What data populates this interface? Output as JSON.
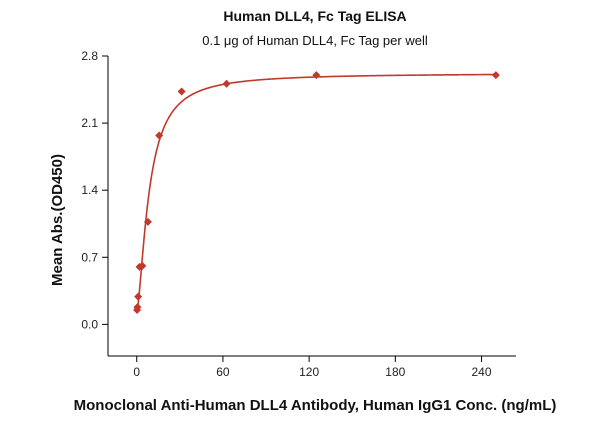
{
  "chart_data": {
    "type": "scatter",
    "title": "Human DLL4, Fc Tag ELISA",
    "subtitle": "0.1 μg of Human DLL4, Fc Tag per well",
    "xlabel": "Monoclonal Anti-Human DLL4 Antibody, Human IgG1 Conc. (ng/mL)",
    "ylabel": "Mean Abs.(OD450)",
    "xlim": [
      -20,
      264
    ],
    "ylim": [
      -0.33,
      2.8
    ],
    "xticks": [
      0,
      60,
      120,
      180,
      240
    ],
    "yticks": [
      0.0,
      0.7,
      1.4,
      2.1,
      2.8
    ],
    "ytick_labels": [
      "0.0",
      "0.7",
      "1.4",
      "2.1",
      "2.8"
    ],
    "grid": false,
    "color": "#c0392b",
    "series": [
      {
        "marker": "diamond",
        "x": [
          0.24,
          0.49,
          0.98,
          1.95,
          3.9,
          7.8,
          15.6,
          31.25,
          62.5,
          125,
          250
        ],
        "y": [
          0.15,
          0.18,
          0.29,
          0.6,
          0.61,
          1.07,
          1.97,
          2.43,
          2.51,
          2.6,
          2.6
        ]
      }
    ],
    "fit": {
      "model": "4PL",
      "bottom": 0.13,
      "top": 2.62,
      "ec50": 8.6,
      "hill": 1.55
    }
  }
}
